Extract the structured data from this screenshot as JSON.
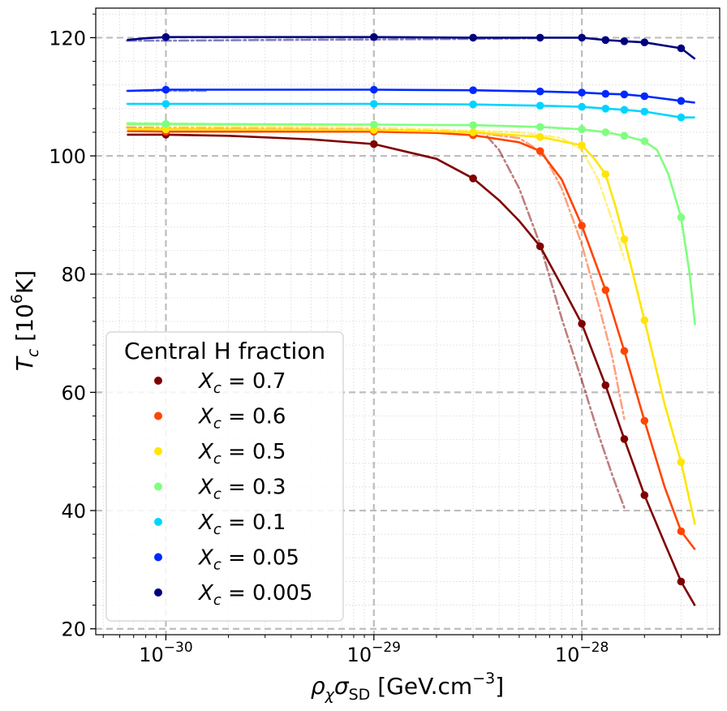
{
  "chart_data": {
    "type": "line",
    "title": "",
    "xlabel": "ρχσSD [GeV.cm−3]",
    "ylabel": "Tc [10⁶K]",
    "xscale": "log",
    "xlim": [
      4.6e-31,
      4.6e-28
    ],
    "ylim": [
      19,
      125
    ],
    "x_ticks": [
      {
        "value": 1e-30,
        "base": "10",
        "exp": "−30"
      },
      {
        "value": 1e-29,
        "base": "10",
        "exp": "−29"
      },
      {
        "value": 1e-28,
        "base": "10",
        "exp": "−28"
      }
    ],
    "y_ticks": [
      20,
      40,
      60,
      80,
      100,
      120
    ],
    "grid": true,
    "legend": {
      "title": "Central H fraction",
      "placement": "lower-left"
    },
    "series": [
      {
        "name": "X_c = 0.7",
        "label_sym": "X",
        "label_sub": "c",
        "label_val": "= 0.7",
        "color": "#7f0000",
        "points": [
          [
            1e-30,
            103.6
          ],
          [
            1e-29,
            102.0
          ],
          [
            3e-29,
            96.2
          ],
          [
            6.3e-29,
            84.7
          ],
          [
            1e-28,
            71.6
          ],
          [
            1.3e-28,
            61.2
          ],
          [
            1.6e-28,
            52.1
          ],
          [
            2e-28,
            42.6
          ],
          [
            3e-28,
            28.0
          ]
        ],
        "line": [
          [
            6.5e-31,
            103.6
          ],
          [
            1e-30,
            103.6
          ],
          [
            2e-30,
            103.4
          ],
          [
            5e-30,
            102.8
          ],
          [
            1e-29,
            102.0
          ],
          [
            2e-29,
            99.5
          ],
          [
            3e-29,
            96.2
          ],
          [
            4e-29,
            92.5
          ],
          [
            5e-29,
            89.0
          ],
          [
            6.3e-29,
            84.7
          ],
          [
            8e-29,
            78.0
          ],
          [
            1e-28,
            71.6
          ],
          [
            1.3e-28,
            61.2
          ],
          [
            1.6e-28,
            52.1
          ],
          [
            2e-28,
            42.6
          ],
          [
            2.5e-28,
            34.5
          ],
          [
            3e-28,
            28.0
          ],
          [
            3.5e-28,
            23.9
          ]
        ],
        "dashed": [
          [
            3.5e-29,
            103.3
          ],
          [
            4e-29,
            101.0
          ],
          [
            5e-29,
            94.5
          ],
          [
            6.3e-29,
            85.0
          ],
          [
            8e-29,
            72.5
          ],
          [
            1e-28,
            62.0
          ],
          [
            1.2e-28,
            53.0
          ],
          [
            1.4e-28,
            46.0
          ],
          [
            1.6e-28,
            40.5
          ]
        ]
      },
      {
        "name": "X_c = 0.6",
        "label_sym": "X",
        "label_sub": "c",
        "label_val": "= 0.6",
        "color": "#ff4500",
        "points": [
          [
            1e-30,
            104.1
          ],
          [
            1e-29,
            104.1
          ],
          [
            3e-29,
            103.5
          ],
          [
            6.3e-29,
            100.8
          ],
          [
            1e-28,
            88.2
          ],
          [
            1.3e-28,
            77.3
          ],
          [
            1.6e-28,
            67.0
          ],
          [
            2e-28,
            55.2
          ],
          [
            3e-28,
            36.5
          ]
        ],
        "line": [
          [
            6.5e-31,
            104.2
          ],
          [
            1e-30,
            104.1
          ],
          [
            3e-30,
            104.1
          ],
          [
            1e-29,
            104.1
          ],
          [
            2e-29,
            103.9
          ],
          [
            3e-29,
            103.5
          ],
          [
            5e-29,
            102.3
          ],
          [
            6.3e-29,
            100.8
          ],
          [
            8e-29,
            96.0
          ],
          [
            1e-28,
            88.2
          ],
          [
            1.3e-28,
            77.3
          ],
          [
            1.6e-28,
            67.0
          ],
          [
            2e-28,
            55.2
          ],
          [
            2.5e-28,
            44.0
          ],
          [
            3e-28,
            36.5
          ],
          [
            3.5e-28,
            33.4
          ]
        ],
        "dashed": [
          [
            6.5e-31,
            104.8
          ],
          [
            1e-30,
            104.7
          ],
          [
            1e-29,
            104.5
          ],
          [
            3e-29,
            104.0
          ],
          [
            5e-29,
            103.0
          ],
          [
            6.5e-29,
            100.5
          ],
          [
            8e-29,
            94.5
          ],
          [
            1e-28,
            85.0
          ],
          [
            1.2e-28,
            75.0
          ],
          [
            1.4e-28,
            66.0
          ],
          [
            1.6e-28,
            55.5
          ]
        ]
      },
      {
        "name": "X_c = 0.5",
        "label_sym": "X",
        "label_sub": "c",
        "label_val": "= 0.5",
        "color": "#ffe500",
        "points": [
          [
            1e-30,
            104.5
          ],
          [
            1e-29,
            104.4
          ],
          [
            3e-29,
            104.0
          ],
          [
            6.3e-29,
            103.2
          ],
          [
            1e-28,
            101.8
          ],
          [
            1.3e-28,
            96.9
          ],
          [
            1.6e-28,
            85.9
          ],
          [
            2e-28,
            72.2
          ],
          [
            3e-28,
            48.2
          ]
        ],
        "line": [
          [
            6.5e-31,
            104.5
          ],
          [
            1e-30,
            104.5
          ],
          [
            1e-29,
            104.4
          ],
          [
            3e-29,
            104.0
          ],
          [
            6.3e-29,
            103.2
          ],
          [
            1e-28,
            101.8
          ],
          [
            1.15e-28,
            99.5
          ],
          [
            1.3e-28,
            96.9
          ],
          [
            1.45e-28,
            91.5
          ],
          [
            1.6e-28,
            85.9
          ],
          [
            2e-28,
            72.2
          ],
          [
            2.5e-28,
            58.0
          ],
          [
            3e-28,
            48.2
          ],
          [
            3.5e-28,
            37.6
          ]
        ],
        "dashed": [
          [
            6.5e-31,
            105.2
          ],
          [
            1e-30,
            105.1
          ],
          [
            1e-29,
            104.8
          ],
          [
            5e-29,
            104.0
          ],
          [
            8e-29,
            103.0
          ],
          [
            1e-28,
            101.0
          ],
          [
            1.2e-28,
            96.0
          ],
          [
            1.4e-28,
            89.0
          ],
          [
            1.6e-28,
            82.5
          ]
        ]
      },
      {
        "name": "X_c = 0.3",
        "label_sym": "X",
        "label_sub": "c",
        "label_val": "= 0.3",
        "color": "#7fff7f",
        "points": [
          [
            1e-30,
            105.4
          ],
          [
            1e-29,
            105.3
          ],
          [
            3e-29,
            105.2
          ],
          [
            6.3e-29,
            104.9
          ],
          [
            1e-28,
            104.5
          ],
          [
            1.3e-28,
            104.0
          ],
          [
            1.6e-28,
            103.4
          ],
          [
            2e-28,
            102.5
          ],
          [
            3e-28,
            89.6
          ]
        ],
        "line": [
          [
            6.5e-31,
            105.4
          ],
          [
            1e-30,
            105.4
          ],
          [
            1e-29,
            105.3
          ],
          [
            3e-29,
            105.2
          ],
          [
            6.3e-29,
            104.9
          ],
          [
            1e-28,
            104.5
          ],
          [
            1.3e-28,
            104.0
          ],
          [
            1.6e-28,
            103.4
          ],
          [
            2e-28,
            102.5
          ],
          [
            2.3e-28,
            101.0
          ],
          [
            2.6e-28,
            97.0
          ],
          [
            3e-28,
            89.6
          ],
          [
            3.3e-28,
            80.0
          ],
          [
            3.5e-28,
            71.4
          ]
        ],
        "dashed": [
          [
            6.5e-31,
            105.6
          ],
          [
            1e-30,
            105.5
          ],
          [
            1.6e-30,
            105.4
          ]
        ]
      },
      {
        "name": "X_c = 0.1",
        "label_sym": "X",
        "label_sub": "c",
        "label_val": "= 0.1",
        "color": "#00d4ff",
        "points": [
          [
            1e-30,
            108.8
          ],
          [
            1e-29,
            108.8
          ],
          [
            3e-29,
            108.7
          ],
          [
            6.3e-29,
            108.5
          ],
          [
            1e-28,
            108.3
          ],
          [
            1.3e-28,
            108.0
          ],
          [
            1.6e-28,
            107.8
          ],
          [
            2e-28,
            107.5
          ],
          [
            3e-28,
            106.5
          ]
        ],
        "line": [
          [
            6.5e-31,
            108.8
          ],
          [
            1e-30,
            108.8
          ],
          [
            1e-29,
            108.8
          ],
          [
            3e-29,
            108.7
          ],
          [
            6.3e-29,
            108.5
          ],
          [
            1e-28,
            108.3
          ],
          [
            1.3e-28,
            108.0
          ],
          [
            1.6e-28,
            107.8
          ],
          [
            2e-28,
            107.5
          ],
          [
            3e-28,
            106.5
          ],
          [
            3.5e-28,
            106.5
          ]
        ],
        "dashed": [
          [
            6.5e-31,
            108.8
          ],
          [
            1e-30,
            108.8
          ],
          [
            1.6e-30,
            108.8
          ]
        ]
      },
      {
        "name": "X_c = 0.05",
        "label_sym": "X",
        "label_sub": "c",
        "label_val": "= 0.05",
        "color": "#0028ff",
        "points": [
          [
            1e-30,
            111.2
          ],
          [
            1e-29,
            111.2
          ],
          [
            3e-29,
            111.1
          ],
          [
            6.3e-29,
            110.9
          ],
          [
            1e-28,
            110.7
          ],
          [
            1.3e-28,
            110.5
          ],
          [
            1.6e-28,
            110.4
          ],
          [
            2e-28,
            110.1
          ],
          [
            3e-28,
            109.3
          ]
        ],
        "line": [
          [
            6.5e-31,
            111.0
          ],
          [
            1e-30,
            111.2
          ],
          [
            1e-29,
            111.2
          ],
          [
            3e-29,
            111.1
          ],
          [
            6.3e-29,
            110.9
          ],
          [
            1e-28,
            110.7
          ],
          [
            1.3e-28,
            110.5
          ],
          [
            1.6e-28,
            110.4
          ],
          [
            2e-28,
            110.1
          ],
          [
            3e-28,
            109.3
          ],
          [
            3.5e-28,
            109.0
          ]
        ],
        "dashed": [
          [
            6.5e-31,
            111.0
          ],
          [
            1e-30,
            111.0
          ],
          [
            1.6e-30,
            111.0
          ]
        ]
      },
      {
        "name": "X_c = 0.005",
        "label_sym": "X",
        "label_sub": "c",
        "label_val": "= 0.005",
        "color": "#00007f",
        "points": [
          [
            1e-30,
            120.1
          ],
          [
            1e-29,
            120.1
          ],
          [
            3e-29,
            120.0
          ],
          [
            6.3e-29,
            120.0
          ],
          [
            1e-28,
            120.0
          ],
          [
            1.3e-28,
            119.6
          ],
          [
            1.6e-28,
            119.4
          ],
          [
            2e-28,
            119.2
          ],
          [
            3e-28,
            118.2
          ]
        ],
        "line": [
          [
            6.5e-31,
            119.6
          ],
          [
            8e-31,
            119.9
          ],
          [
            1e-30,
            120.1
          ],
          [
            1e-29,
            120.1
          ],
          [
            3e-29,
            120.0
          ],
          [
            6.3e-29,
            120.0
          ],
          [
            1e-28,
            120.0
          ],
          [
            1.3e-28,
            119.6
          ],
          [
            1.6e-28,
            119.4
          ],
          [
            2e-28,
            119.2
          ],
          [
            3e-28,
            118.2
          ],
          [
            3.5e-28,
            116.4
          ]
        ],
        "dashed": [
          [
            6.5e-31,
            119.5
          ],
          [
            1e-30,
            119.5
          ],
          [
            3e-30,
            119.6
          ],
          [
            1e-29,
            119.7
          ],
          [
            3e-29,
            119.8
          ],
          [
            6e-29,
            119.9
          ]
        ]
      }
    ]
  }
}
